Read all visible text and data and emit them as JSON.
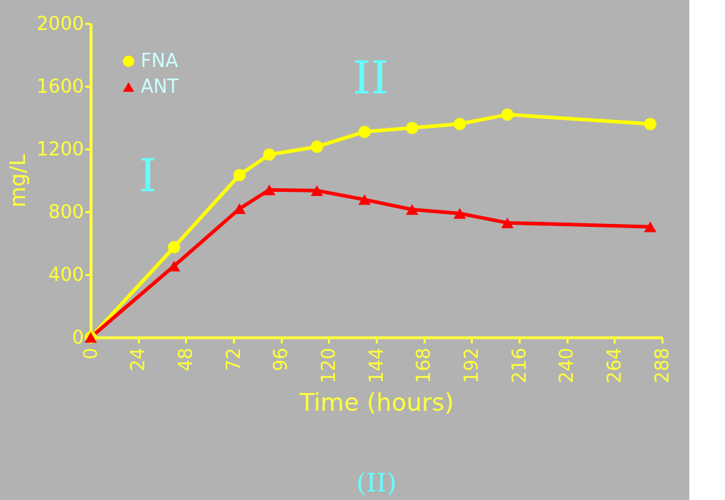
{
  "chart_data": {
    "type": "line",
    "xlabel": "Time (hours)",
    "ylabel": "mg/L",
    "x": [
      0,
      42,
      75,
      90,
      114,
      138,
      162,
      186,
      210,
      282
    ],
    "series": [
      {
        "name": "FNA",
        "color": "#ffff00",
        "marker": "circle",
        "values": [
          0,
          575,
          1035,
          1165,
          1215,
          1310,
          1335,
          1360,
          1420,
          1360
        ]
      },
      {
        "name": "ANT",
        "color": "#ff0000",
        "marker": "triangle",
        "values": [
          0,
          455,
          820,
          940,
          935,
          878,
          815,
          790,
          730,
          705
        ]
      }
    ],
    "xlim": [
      0,
      288
    ],
    "xticks": [
      0,
      24,
      48,
      72,
      96,
      120,
      144,
      168,
      192,
      216,
      240,
      264,
      288
    ],
    "ylim": [
      0,
      2000
    ],
    "yticks": [
      0,
      400,
      800,
      1200,
      1600,
      2000
    ],
    "annotations": [
      "I",
      "II",
      "(II)"
    ],
    "legend": "top left",
    "grid": false,
    "line_style": "solid"
  }
}
